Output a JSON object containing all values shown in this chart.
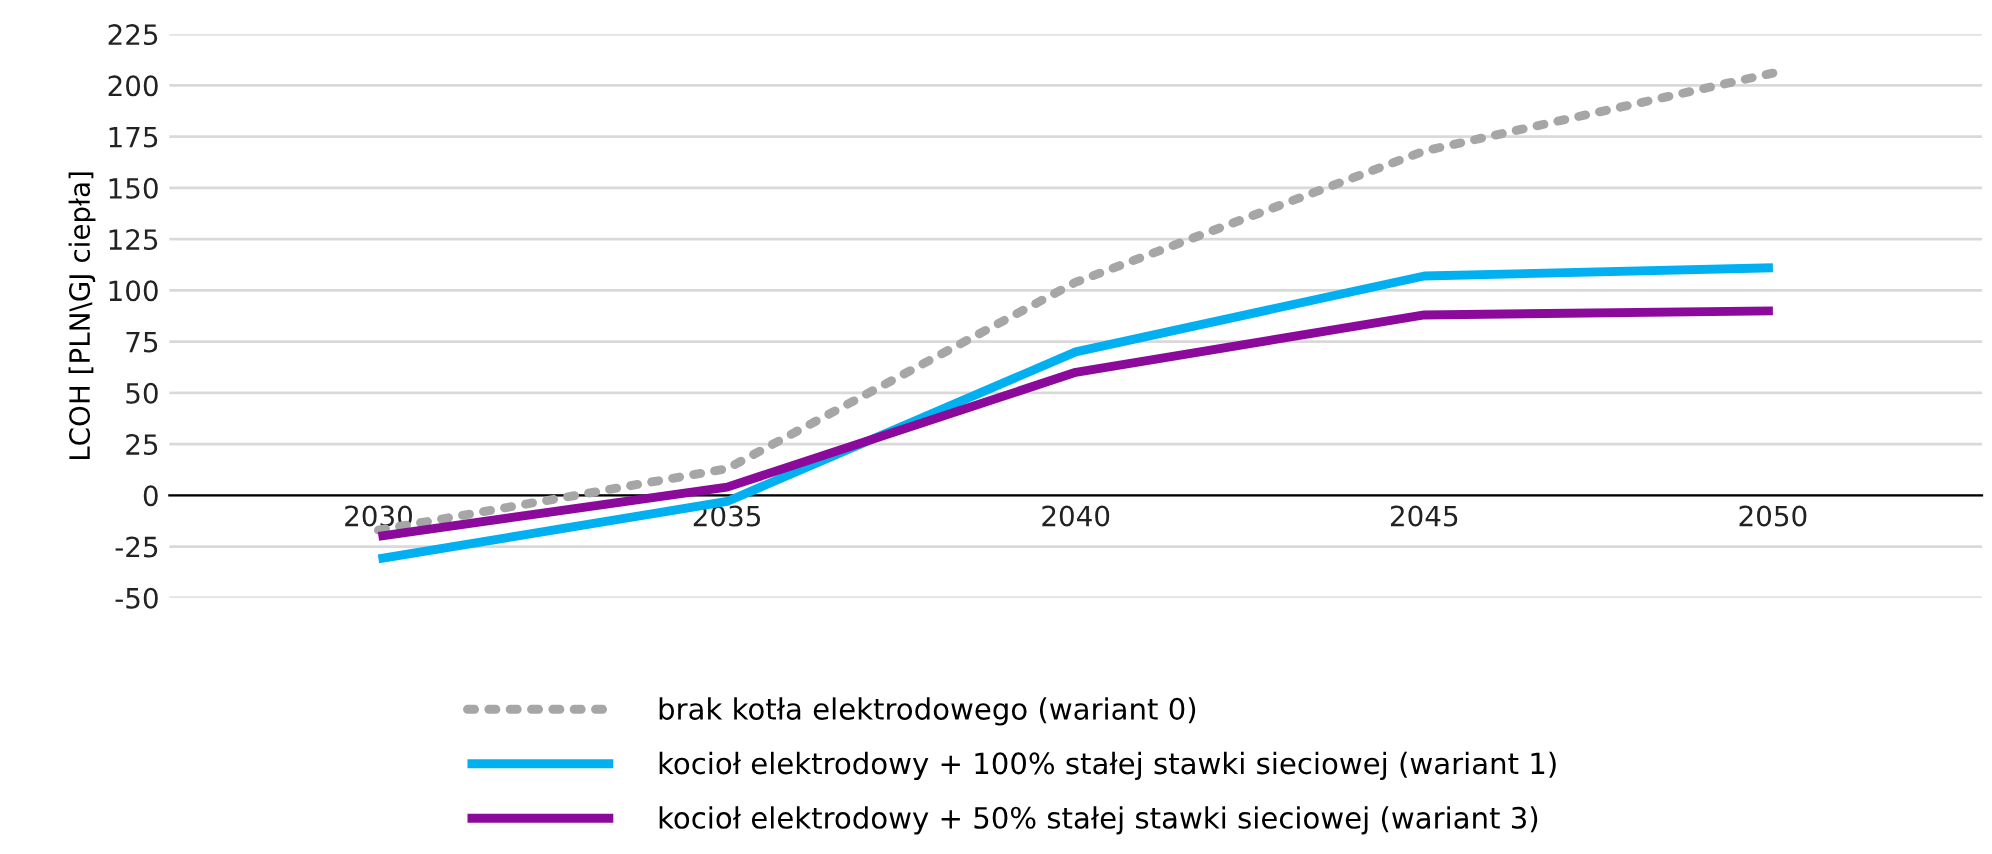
{
  "chart_data": {
    "type": "line",
    "ylabel": "LCOH [PLN\\GJ ciepła]",
    "categories": [
      "2030",
      "2035",
      "2040",
      "2045",
      "2050"
    ],
    "series": [
      {
        "name": "brak kotła elektrodowego (wariant 0)",
        "color": "#a6a6a6",
        "line_style": "dotted",
        "values": [
          -17,
          13,
          104,
          168,
          206
        ]
      },
      {
        "name": "kocioł elektrodowy + 100% stałej stawki sieciowej (wariant 1)",
        "color": "#00b0f0",
        "line_style": "solid",
        "values": [
          -31,
          -3,
          70,
          107,
          111
        ]
      },
      {
        "name": "kocioł elektrodowy + 50% stałej stawki sieciowej (wariant 3)",
        "color": "#8b0a9b",
        "line_style": "solid",
        "values": [
          -20,
          4,
          60,
          88,
          90
        ]
      }
    ],
    "ylim": [
      -50,
      225
    ],
    "yticks": [
      -50,
      -25,
      0,
      25,
      50,
      75,
      100,
      125,
      150,
      175,
      200,
      225
    ],
    "grid": "y",
    "legend": "bottom",
    "marker": "none"
  }
}
